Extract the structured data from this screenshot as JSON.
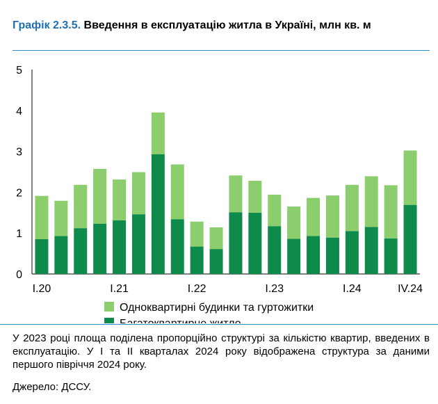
{
  "title": {
    "number": "Графік 2.3.5.",
    "text": " Введення в експлуатацію житла в Україні, млн кв. м"
  },
  "chart_data": {
    "type": "bar",
    "stacked": true,
    "ylim": [
      0,
      5
    ],
    "yticks": [
      "0",
      "1",
      "2",
      "3",
      "4",
      "5"
    ],
    "categories": [
      "I.20",
      "II.20",
      "III.20",
      "IV.20",
      "I.21",
      "II.21",
      "III.21",
      "IV.21",
      "I.22",
      "II.22",
      "III.22",
      "IV.22",
      "I.23",
      "II.23",
      "III.23",
      "IV.23",
      "I.24",
      "II.24",
      "III.24",
      "IV.24"
    ],
    "xtick_labels": [
      {
        "index": 0,
        "label": "I.20"
      },
      {
        "index": 4,
        "label": "I.21"
      },
      {
        "index": 8,
        "label": "I.22"
      },
      {
        "index": 12,
        "label": "I.23"
      },
      {
        "index": 16,
        "label": "I.24"
      },
      {
        "index": 19,
        "label": "IV.24"
      }
    ],
    "series": [
      {
        "name": "Багатоквартирне житло",
        "color": "#0e8a4a",
        "values": [
          0.85,
          0.93,
          1.12,
          1.23,
          1.31,
          1.46,
          2.93,
          1.34,
          0.67,
          0.61,
          1.51,
          1.5,
          1.17,
          0.86,
          0.93,
          0.89,
          1.05,
          1.15,
          0.87,
          1.69
        ]
      },
      {
        "name": "Одноквартирні будинки та гуртожитки",
        "color": "#8ccd6e",
        "values": [
          1.06,
          0.86,
          1.06,
          1.34,
          1.0,
          1.03,
          1.02,
          1.34,
          0.61,
          0.53,
          0.9,
          0.78,
          0.77,
          0.79,
          0.93,
          1.03,
          1.13,
          1.24,
          1.3,
          1.33
        ]
      }
    ],
    "legend": [
      {
        "label": "Одноквартирні будинки та гуртожитки",
        "color": "#8ccd6e"
      },
      {
        "label": "Багатоквартирне житло",
        "color": "#0e8a4a"
      }
    ],
    "grid": false,
    "legend_position": "bottom"
  },
  "note": "У 2023 році площа поділена пропорційно структурі за кількістю квартир, введених в експлуатацію. У I та II кварталах 2024 року відображена структура за даними першого півріччя 2024 року.",
  "source": "Джерело: ДССУ."
}
